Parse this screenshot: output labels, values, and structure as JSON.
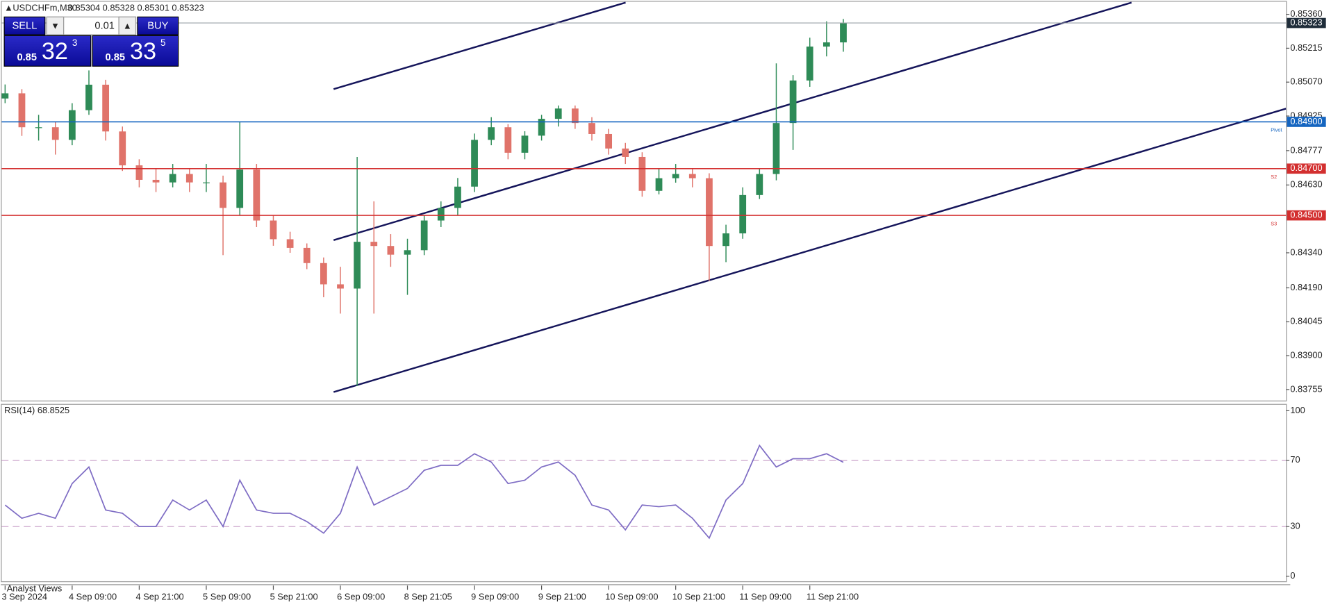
{
  "header": {
    "symbol": "USDCHFm,M30",
    "ohlc": "0.85304 0.85328 0.85301 0.85323"
  },
  "trade_panel": {
    "sell": "SELL",
    "buy": "BUY",
    "volume": "0.01",
    "bid": {
      "prefix": "0.85",
      "big": "32",
      "sup": "3"
    },
    "ask": {
      "prefix": "0.85",
      "big": "33",
      "sup": "5"
    }
  },
  "chart_data": [
    {
      "type": "candlestick",
      "categories": [
        "3 Sep 2024",
        null,
        null,
        null,
        "4 Sep 09:00",
        null,
        null,
        null,
        "4 Sep 21:00",
        null,
        null,
        null,
        "5 Sep 09:00",
        null,
        null,
        null,
        "5 Sep 21:00",
        null,
        null,
        null,
        "6 Sep 09:00",
        null,
        null,
        null,
        "8 Sep 21:05",
        null,
        null,
        null,
        "9 Sep 09:00",
        null,
        null,
        null,
        "9 Sep 21:00",
        null,
        null,
        null,
        "10 Sep 09:00",
        null,
        null,
        null,
        "10 Sep 21:00",
        null,
        null,
        null,
        "11 Sep 09:00",
        null,
        null,
        null,
        "11 Sep 21:00",
        null,
        null
      ],
      "series": [
        {
          "up_color": "#2e8b57",
          "down_color": "#e0736a",
          "open": [
            0.85,
            0.85022,
            0.84877,
            0.84877,
            0.84823,
            0.8495,
            0.85059,
            0.84859,
            0.84714,
            0.84652,
            0.84641,
            0.84677,
            0.84641,
            0.84641,
            0.84532,
            0.84696,
            0.84478,
            0.84398,
            0.84361,
            0.84296,
            0.84205,
            0.84187,
            0.84387,
            0.84369,
            0.84332,
            0.84351,
            0.84478,
            0.84532,
            0.84623,
            0.84823,
            0.84877,
            0.84768,
            0.84841,
            0.84913,
            0.84957,
            0.84895,
            0.84848,
            0.84786,
            0.8475,
            0.84605,
            0.84659,
            0.84677,
            0.84659,
            0.84369,
            0.84423,
            0.84587,
            0.84677,
            0.84895,
            0.85077,
            0.85222,
            0.8524
          ],
          "high": [
            0.8506,
            0.8504,
            0.8493,
            0.849,
            0.8498,
            0.8512,
            0.8508,
            0.8488,
            0.8474,
            0.847,
            0.8472,
            0.847,
            0.8472,
            0.8467,
            0.849,
            0.8472,
            0.845,
            0.8443,
            0.8438,
            0.8432,
            0.8428,
            0.8475,
            0.8456,
            0.8442,
            0.844,
            0.845,
            0.8456,
            0.8466,
            0.8485,
            0.8492,
            0.8489,
            0.8486,
            0.8493,
            0.8497,
            0.8497,
            0.8492,
            0.8487,
            0.8481,
            0.8477,
            0.847,
            0.8472,
            0.847,
            0.8468,
            0.8446,
            0.8462,
            0.847,
            0.8515,
            0.851,
            0.8526,
            0.8533,
            0.8534
          ],
          "low": [
            0.8498,
            0.8484,
            0.8482,
            0.8476,
            0.848,
            0.8493,
            0.8482,
            0.8469,
            0.8462,
            0.846,
            0.8462,
            0.846,
            0.846,
            0.8433,
            0.845,
            0.8445,
            0.8437,
            0.8434,
            0.8427,
            0.8415,
            0.8408,
            0.8377,
            0.8408,
            0.8428,
            0.8416,
            0.8433,
            0.8445,
            0.845,
            0.846,
            0.848,
            0.8474,
            0.8474,
            0.8482,
            0.8488,
            0.8487,
            0.8482,
            0.8476,
            0.8472,
            0.8458,
            0.8459,
            0.8464,
            0.8462,
            0.8422,
            0.843,
            0.844,
            0.8457,
            0.8465,
            0.8478,
            0.8505,
            0.8518,
            0.852
          ],
          "close": [
            0.85022,
            0.84877,
            0.84877,
            0.84823,
            0.8495,
            0.85059,
            0.84859,
            0.84714,
            0.84652,
            0.84641,
            0.84677,
            0.84641,
            0.84641,
            0.84532,
            0.84696,
            0.84478,
            0.84398,
            0.84361,
            0.84296,
            0.84205,
            0.84187,
            0.84387,
            0.84369,
            0.84332,
            0.84351,
            0.84478,
            0.84532,
            0.84623,
            0.84823,
            0.84877,
            0.84768,
            0.84841,
            0.84913,
            0.84957,
            0.84895,
            0.84848,
            0.84786,
            0.8475,
            0.84605,
            0.84659,
            0.84677,
            0.84659,
            0.84369,
            0.84423,
            0.84587,
            0.84677,
            0.84895,
            0.85077,
            0.85222,
            0.8524,
            0.85323
          ]
        }
      ],
      "ylim": [
        0.83708,
        0.85414
      ],
      "yticks": [
        {
          "value": 0.8536,
          "label": "0.85360"
        },
        {
          "value": 0.85215,
          "label": "0.85215"
        },
        {
          "value": 0.8507,
          "label": "0.85070"
        },
        {
          "value": 0.84925,
          "label": "0.84925"
        },
        {
          "value": 0.84777,
          "label": "0.84777"
        },
        {
          "value": 0.8463,
          "label": "0.84630"
        },
        {
          "value": 0.8434,
          "label": "0.84340"
        },
        {
          "value": 0.8419,
          "label": "0.84190"
        },
        {
          "value": 0.84045,
          "label": "0.84045"
        },
        {
          "value": 0.839,
          "label": "0.83900"
        },
        {
          "value": 0.83755,
          "label": "0.83755"
        }
      ],
      "levels": [
        {
          "name": "Pivot",
          "value": 0.849,
          "label": "0.84900",
          "color": "#1565c0"
        },
        {
          "name": "S2",
          "value": 0.847,
          "label": "0.84700",
          "color": "#d32f2f"
        },
        {
          "name": "S3",
          "value": 0.845,
          "label": "0.84500",
          "color": "#d32f2f"
        }
      ],
      "last": {
        "value": 0.85323,
        "label": "0.85323",
        "color": "#1f2d3a"
      }
    },
    {
      "type": "line",
      "title": "RSI(14) 68.8525",
      "series": [
        {
          "color": "#7e6cc4",
          "values": [
            43,
            35,
            38,
            35,
            56,
            66,
            40,
            38,
            30,
            30,
            46,
            40,
            46,
            30,
            58,
            40,
            38,
            38,
            33,
            26,
            38,
            66,
            43,
            48,
            53,
            64,
            67,
            67,
            74,
            69,
            56,
            58,
            66,
            69,
            61,
            43,
            40,
            28,
            43,
            42,
            43,
            35,
            23,
            46,
            56,
            79,
            66,
            71,
            71,
            74,
            68.8525
          ]
        }
      ],
      "ylim": [
        -3.1,
        103.6
      ],
      "yticks": [
        0,
        30,
        70,
        100
      ],
      "levels": [
        30,
        70
      ],
      "level_color": "#c9a0c9"
    }
  ],
  "footer": {
    "tab": "Analyst Views"
  }
}
